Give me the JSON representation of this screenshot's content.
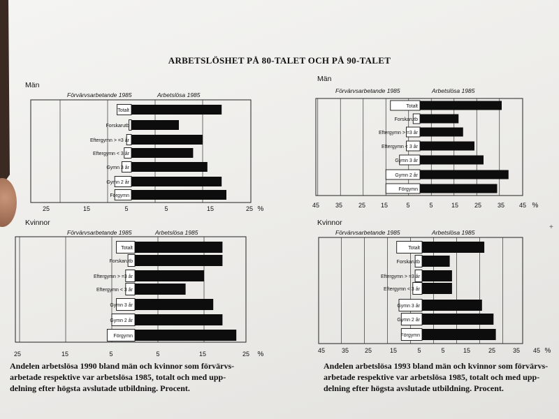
{
  "title": "ARBETSLÖSHET PÅ 80-TALET OCH PÅ 90-TALET",
  "categories": [
    "Totalt",
    "Forskarutb",
    "Eftergymn > =3 år",
    "Eftergymn < 3 år",
    "Gymn 3 år",
    "Gymn 2 år",
    "Förgymn"
  ],
  "header_left": "Förvärvsarbetande 1985",
  "header_right": "Arbetslösa 1985",
  "captions": {
    "left": [
      "Andelen arbetslösa 1990 bland män och kvinnor som förvärvs-",
      "arbetade respektive var arbetslösa 1985, totalt och med upp-",
      "delning efter högsta avslutade utbildning. Procent."
    ],
    "right": [
      "Andelen arbetslösa 1993 bland män och kvinnor som förvärvs-",
      "arbetade respektive var arbetslösa 1985, totalt och med upp-",
      "delning efter högsta avslutade utbildning. Procent."
    ]
  },
  "colors": {
    "black_bar": "#0d0d0d",
    "white_bar": "#ffffff",
    "ink": "#111111"
  },
  "chart_data": [
    {
      "type": "bar",
      "group": "Män",
      "year": 1990,
      "ticks": [
        "25",
        "15",
        "5",
        "5",
        "15",
        "25"
      ],
      "unit": "%",
      "ylabel": "Män",
      "categories": [
        "Totalt",
        "Forskarutb",
        "Eftergymn > =3 år",
        "Eftergymn < 3 år",
        "Gymn 3 år",
        "Gymn 2 år",
        "Förgymn"
      ],
      "series": [
        {
          "name": "Förvärvsarbetande 1985",
          "values": [
            3,
            0.5,
            1,
            1.5,
            2,
            3.5,
            3.5
          ]
        },
        {
          "name": "Arbetslösa 1985",
          "values": [
            19,
            10,
            15,
            13,
            16,
            19,
            20
          ]
        }
      ]
    },
    {
      "type": "bar",
      "group": "Män",
      "year": 1993,
      "ticks": [
        "45",
        "35",
        "25",
        "15",
        "5",
        "5",
        "15",
        "25",
        "35",
        "45"
      ],
      "unit": "%",
      "ylabel": "Män",
      "categories": [
        "Totalt",
        "Forskarutb",
        "Eftergymn > =3 år",
        "Eftergymn < 3 år",
        "Gymn 3 år",
        "Gymn 2 år",
        "Förgymn"
      ],
      "series": [
        {
          "name": "Förvärvsarbetande 1985",
          "values": [
            13,
            3,
            6,
            6,
            9,
            15,
            15
          ]
        },
        {
          "name": "Arbetslösa 1985",
          "values": [
            36,
            17,
            19,
            24,
            28,
            39,
            34
          ]
        }
      ]
    },
    {
      "type": "bar",
      "group": "Kvinnor",
      "year": 1990,
      "ticks": [
        "25",
        "15",
        "5",
        "5",
        "15",
        "25"
      ],
      "unit": "%",
      "ylabel": "Kvinnor",
      "categories": [
        "Totalt",
        "Forskarutb",
        "Eftergymn > =3 år",
        "Eftergymn < 3 år",
        "Gymn 3 år",
        "Gymn 2 år",
        "Förgymn"
      ],
      "series": [
        {
          "name": "Förvärvsarbetande 1985",
          "values": [
            4,
            1.5,
            2,
            2,
            4,
            5,
            6
          ]
        },
        {
          "name": "Arbetslösa 1985",
          "values": [
            19,
            19,
            15,
            11,
            17,
            19,
            22
          ]
        }
      ]
    },
    {
      "type": "bar",
      "group": "Kvinnor",
      "year": 1993,
      "ticks": [
        "45",
        "35",
        "25",
        "15",
        "5",
        "5",
        "15",
        "25",
        "35",
        "45"
      ],
      "unit": "%",
      "ylabel": "Kvinnor",
      "categories": [
        "Totalt",
        "Forskarutb",
        "Eftergymn > =3 år",
        "Eftergymn < 3 år",
        "Gymn 3 år",
        "Gymn 2 år",
        "Förgymn"
      ],
      "series": [
        {
          "name": "Förvärvsarbetande 1985",
          "values": [
            11,
            3,
            3,
            4,
            10,
            9,
            9
          ]
        },
        {
          "name": "Arbetslösa 1985",
          "values": [
            27,
            12,
            13,
            13,
            26,
            31,
            32
          ]
        }
      ]
    }
  ]
}
